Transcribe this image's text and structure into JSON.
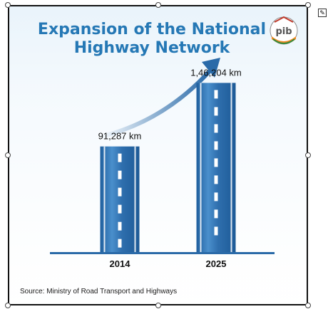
{
  "title_line1": "Expansion of the National",
  "title_line2": "Highway Network",
  "logo_text": "pib",
  "source": "Source: Ministry of Road Transport and Highways",
  "colors": {
    "title": "#2578b5",
    "bar": "#2f6fae",
    "arrow": "#2a6aa8"
  },
  "chart_data": {
    "type": "bar",
    "categories": [
      "2014",
      "2025"
    ],
    "values": [
      91287,
      146204
    ],
    "data_labels": [
      "91,287 km",
      "1,46,204 km"
    ],
    "title": "Expansion of the National Highway Network",
    "xlabel": "",
    "ylabel": "",
    "ylim": [
      0,
      160000
    ],
    "grid": false
  }
}
